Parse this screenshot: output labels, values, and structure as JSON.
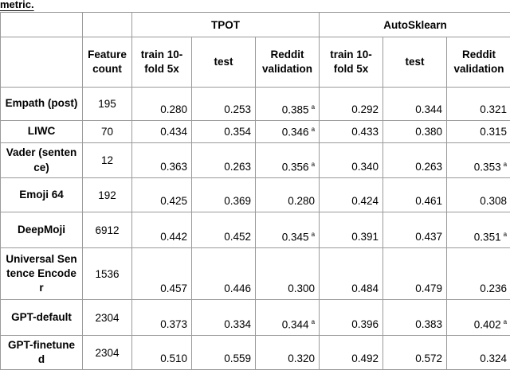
{
  "header": {
    "caption_fragment": "metric."
  },
  "table": {
    "groups": [
      "TPOT",
      "AutoSklearn"
    ],
    "columns": [
      "Feature count",
      "train 10-fold 5x",
      "test",
      "Reddit validation",
      "train 10-fold 5x",
      "test",
      "Reddit validation"
    ],
    "rows": [
      {
        "feature": "Empath (post)",
        "count": "195",
        "cells": [
          {
            "text": "0.280"
          },
          {
            "text": "0.253"
          },
          {
            "text": "0.385",
            "sup": "a"
          },
          {
            "text": "0.292"
          },
          {
            "text": "0.344"
          },
          {
            "text": "0.321"
          }
        ]
      },
      {
        "feature": "LIWC",
        "count": "70",
        "cells": [
          {
            "text": "0.434"
          },
          {
            "text": "0.354"
          },
          {
            "text": "0.346",
            "sup": "a"
          },
          {
            "text": "0.433"
          },
          {
            "text": "0.380"
          },
          {
            "text": "0.315"
          }
        ]
      },
      {
        "feature": "Vader (sentence)",
        "count": "12",
        "cells": [
          {
            "text": "0.363"
          },
          {
            "text": "0.263"
          },
          {
            "text": "0.356",
            "sup": "a"
          },
          {
            "text": "0.340"
          },
          {
            "text": "0.263"
          },
          {
            "text": "0.353",
            "sup": "a"
          }
        ]
      },
      {
        "feature": "Emoji 64",
        "count": "192",
        "cells": [
          {
            "text": "0.425"
          },
          {
            "text": "0.369"
          },
          {
            "text": "0.280"
          },
          {
            "text": "0.424"
          },
          {
            "text": "0.461"
          },
          {
            "text": "0.308"
          }
        ]
      },
      {
        "feature": "DeepMoji",
        "count": "6912",
        "cells": [
          {
            "text": "0.442"
          },
          {
            "text": "0.452"
          },
          {
            "text": "0.345",
            "sup": "a"
          },
          {
            "text": "0.391"
          },
          {
            "text": "0.437"
          },
          {
            "text": "0.351",
            "sup": "a"
          }
        ]
      },
      {
        "feature": "Universal Sentence Encoder",
        "count": "1536",
        "cells": [
          {
            "text": "0.457"
          },
          {
            "text": "0.446"
          },
          {
            "text": "0.300"
          },
          {
            "text": "0.484"
          },
          {
            "text": "0.479"
          },
          {
            "text": "0.236"
          }
        ]
      },
      {
        "feature": "GPT-default",
        "count": "2304",
        "cells": [
          {
            "text": "0.373"
          },
          {
            "text": "0.334"
          },
          {
            "text": "0.344",
            "sup": "a"
          },
          {
            "text": "0.396"
          },
          {
            "text": "0.383"
          },
          {
            "text": "0.402",
            "sup": "a"
          }
        ]
      },
      {
        "feature": "GPT-finetuned",
        "count": "2304",
        "cells": [
          {
            "text": "0.510"
          },
          {
            "text": "0.559"
          },
          {
            "text": "0.320"
          },
          {
            "text": "0.492"
          },
          {
            "text": "0.572"
          },
          {
            "text": "0.324"
          }
        ]
      }
    ]
  }
}
